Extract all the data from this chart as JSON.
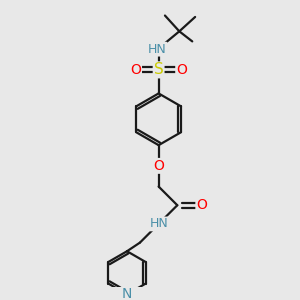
{
  "bg_color": "#e8e8e8",
  "line_color": "#1a1a1a",
  "bond_width": 1.6,
  "atom_colors": {
    "N": "#4a8fa8",
    "O": "#ff0000",
    "S": "#cccc00",
    "C": "#1a1a1a"
  },
  "font_size": 8.5,
  "fig_size": [
    3.0,
    3.0
  ],
  "dpi": 100,
  "xlim": [
    0,
    10
  ],
  "ylim": [
    0,
    10
  ]
}
